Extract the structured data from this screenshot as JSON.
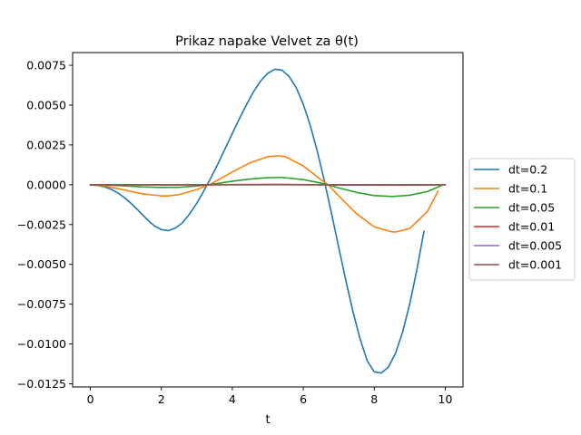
{
  "chart_data": {
    "type": "line",
    "title": "Prikaz napake Velvet za θ(t)",
    "xlabel": "t",
    "ylabel": "",
    "xlim": [
      -0.5,
      10.5
    ],
    "ylim": [
      -0.0127,
      0.0083
    ],
    "xticks": [
      0,
      2,
      4,
      6,
      8,
      10
    ],
    "xtick_labels": [
      "0",
      "2",
      "4",
      "6",
      "8",
      "10"
    ],
    "yticks": [
      0.0075,
      0.005,
      0.0025,
      0.0,
      -0.0025,
      -0.005,
      -0.0075,
      -0.01,
      -0.0125
    ],
    "ytick_labels": [
      "0.0075",
      "0.0050",
      "0.0025",
      "0.0000",
      "−0.0025",
      "−0.0050",
      "−0.0075",
      "−0.0100",
      "−0.0125"
    ],
    "grid": false,
    "legend_position": "outside-right",
    "series": [
      {
        "name": "dt=0.2",
        "color": "#1f77b4",
        "x": [
          0,
          0.2,
          0.4,
          0.6,
          0.8,
          1.0,
          1.2,
          1.4,
          1.6,
          1.8,
          2.0,
          2.2,
          2.4,
          2.6,
          2.8,
          3.0,
          3.2,
          3.4,
          3.6,
          3.8,
          4.0,
          4.2,
          4.4,
          4.6,
          4.8,
          5.0,
          5.2,
          5.4,
          5.6,
          5.8,
          6.0,
          6.2,
          6.4,
          6.6,
          6.8,
          7.0,
          7.2,
          7.4,
          7.6,
          7.8,
          8.0,
          8.2,
          8.4,
          8.6,
          8.8,
          9.0,
          9.2,
          9.4,
          9.6,
          9.8
        ],
        "y": [
          0.0,
          -4e-05,
          -0.00014,
          -0.0003,
          -0.00055,
          -0.00088,
          -0.00128,
          -0.00173,
          -0.00218,
          -0.00258,
          -0.00282,
          -0.00288,
          -0.00272,
          -0.00238,
          -0.00182,
          -0.00116,
          -0.00038,
          0.00045,
          0.00133,
          0.00228,
          0.00322,
          0.00415,
          0.00503,
          0.00585,
          0.00652,
          0.007,
          0.00725,
          0.0072,
          0.0068,
          0.0061,
          0.00505,
          0.0037,
          0.00205,
          0.00018,
          -0.00185,
          -0.00395,
          -0.00602,
          -0.00798,
          -0.00968,
          -0.01105,
          -0.01175,
          -0.01182,
          -0.01145,
          -0.01058,
          -0.00925,
          -0.00748,
          -0.00535,
          -0.00292,
          null,
          null
        ]
      },
      {
        "name": "dt=0.1",
        "color": "#ff7f0e",
        "x": [
          0,
          0.5,
          1.0,
          1.5,
          2.0,
          2.2,
          2.5,
          3.0,
          3.35,
          3.5,
          4.0,
          4.5,
          5.0,
          5.3,
          5.5,
          6.0,
          6.5,
          6.7,
          7.0,
          7.5,
          8.0,
          8.5,
          8.6,
          9.0,
          9.5,
          9.8
        ],
        "y": [
          0.0,
          -0.00012,
          -0.00035,
          -0.00058,
          -0.0007,
          -0.0007,
          -0.00062,
          -0.0003,
          0.0,
          0.00018,
          0.0008,
          0.00138,
          0.00176,
          0.00182,
          0.00176,
          0.00118,
          0.00032,
          0.0,
          -0.0007,
          -0.00182,
          -0.00265,
          -0.00296,
          -0.00297,
          -0.00275,
          -0.00168,
          -0.0004
        ]
      },
      {
        "name": "dt=0.05",
        "color": "#2ca02c",
        "x": [
          0,
          0.5,
          1.0,
          1.5,
          2.0,
          2.5,
          3.0,
          3.35,
          4.0,
          4.5,
          5.0,
          5.3,
          5.5,
          6.0,
          6.5,
          6.7,
          7.0,
          7.5,
          8.0,
          8.5,
          9.0,
          9.5,
          9.9
        ],
        "y": [
          0.0,
          -2e-05,
          -8e-05,
          -0.00014,
          -0.00017,
          -0.00016,
          -8e-05,
          0.0,
          0.00022,
          0.00036,
          0.00044,
          0.00046,
          0.00044,
          0.00032,
          0.0001,
          0.0,
          -0.0002,
          -0.00048,
          -0.00068,
          -0.00074,
          -0.00066,
          -0.00042,
          -5e-05
        ]
      },
      {
        "name": "dt=0.01",
        "color": "#d62728",
        "x": [
          0,
          2.2,
          5.3,
          8.6,
          10.0
        ],
        "y": [
          0.0,
          -6e-06,
          1.8e-05,
          -3e-05,
          0.0
        ]
      },
      {
        "name": "dt=0.005",
        "color": "#9467bd",
        "x": [
          0,
          2.2,
          5.3,
          8.6,
          10.0
        ],
        "y": [
          0.0,
          -3e-06,
          9e-06,
          -1.5e-05,
          0.0
        ]
      },
      {
        "name": "dt=0.001",
        "color": "#8c564b",
        "x": [
          0,
          2.2,
          5.3,
          8.6,
          10.0
        ],
        "y": [
          0.0,
          -1e-06,
          2e-06,
          -3e-06,
          0.0
        ]
      }
    ]
  }
}
